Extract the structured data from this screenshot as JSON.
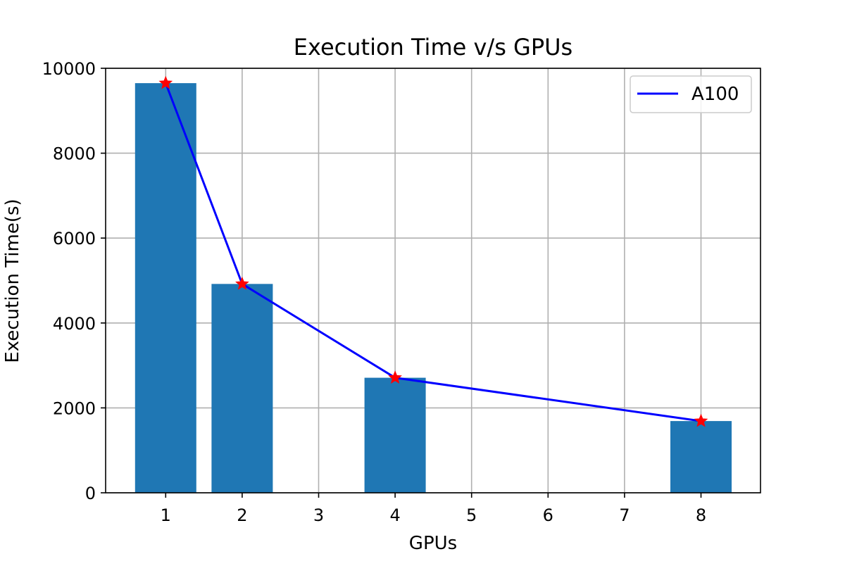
{
  "chart_data": {
    "type": "bar",
    "title": "Execution Time v/s GPUs",
    "xlabel": "GPUs",
    "ylabel": "Execution Time(s)",
    "categories": [
      "1",
      "2",
      "3",
      "4",
      "5",
      "6",
      "7",
      "8"
    ],
    "x_tick_labels": [
      "1",
      "2",
      "3",
      "4",
      "5",
      "6",
      "7",
      "8"
    ],
    "y_ticks": [
      0,
      2000,
      4000,
      6000,
      8000,
      10000
    ],
    "ylim": [
      0,
      10000
    ],
    "grid": true,
    "bars": {
      "color": "#1f77b4",
      "x": [
        "1",
        "2",
        "4",
        "8"
      ],
      "values": [
        9650,
        4920,
        2710,
        1690
      ]
    },
    "series": [
      {
        "name": "A100",
        "type": "line",
        "color": "#0000ff",
        "marker": "star",
        "marker_color": "#ff0000",
        "x": [
          "1",
          "2",
          "4",
          "8"
        ],
        "values": [
          9650,
          4920,
          2710,
          1690
        ]
      }
    ],
    "legend": {
      "position": "top-right",
      "entries": [
        "A100"
      ]
    }
  }
}
